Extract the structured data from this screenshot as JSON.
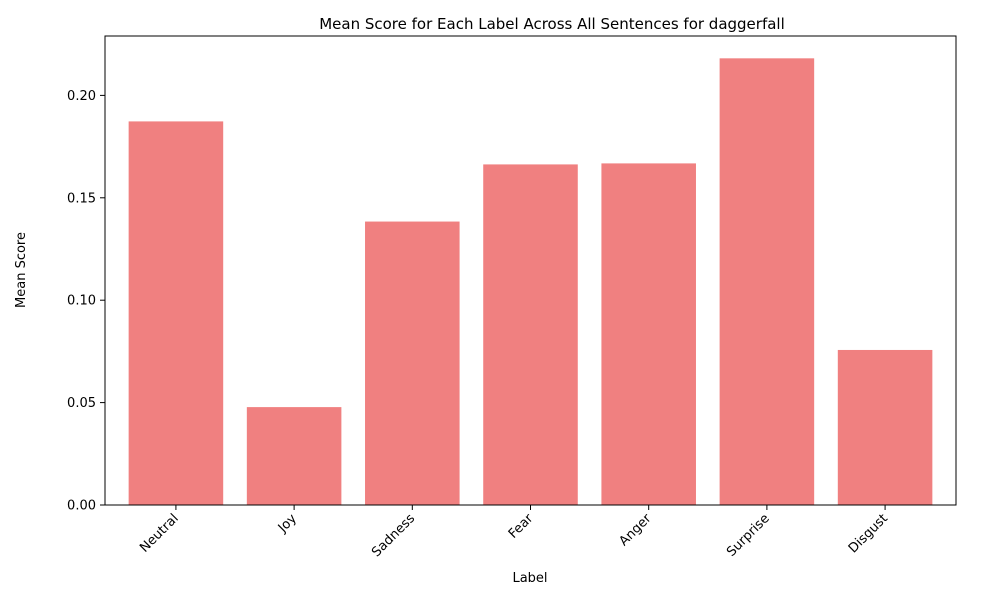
{
  "chart_data": {
    "type": "bar",
    "title": "Mean Score for Each Label Across All Sentences for daggerfall",
    "xlabel": "Label",
    "ylabel": "Mean Score",
    "categories": [
      "Neutral",
      "Joy",
      "Sadness",
      "Fear",
      "Anger",
      "Surprise",
      "Disgust"
    ],
    "values": [
      0.1873,
      0.0478,
      0.1384,
      0.1663,
      0.1668,
      0.2181,
      0.0757
    ],
    "ylim": [
      0,
      0.229
    ],
    "yticks": [
      "0.00",
      "0.05",
      "0.10",
      "0.15",
      "0.20"
    ],
    "bar_color": "#f08080",
    "grid": false,
    "legend": "none"
  }
}
